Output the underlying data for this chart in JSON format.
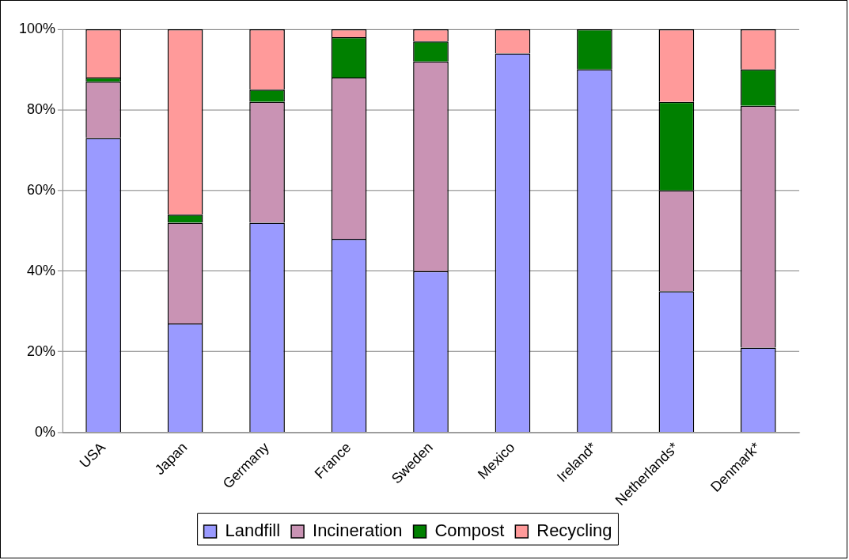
{
  "chart_data": {
    "type": "bar",
    "stacked": true,
    "categories": [
      "USA",
      "Japan",
      "Germany",
      "France",
      "Sweden",
      "Mexico",
      "Ireland*",
      "Netherlands*",
      "Denmark*"
    ],
    "series": [
      {
        "name": "Landfill",
        "color": "#9a9aff",
        "values": [
          73,
          27,
          52,
          48,
          40,
          94,
          90,
          35,
          21
        ]
      },
      {
        "name": "Incineration",
        "color": "#c993b4",
        "values": [
          14,
          25,
          30,
          40,
          52,
          0,
          0,
          25,
          60
        ]
      },
      {
        "name": "Compost",
        "color": "#008000",
        "values": [
          1,
          2,
          3,
          10,
          5,
          0,
          10,
          22,
          9
        ]
      },
      {
        "name": "Recycling",
        "color": "#ff9a9a",
        "values": [
          12,
          46,
          15,
          2,
          3,
          6,
          0,
          18,
          10
        ]
      }
    ],
    "ylim": [
      0,
      100
    ],
    "yticks": [
      {
        "value": 0,
        "label": "0%"
      },
      {
        "value": 20,
        "label": "20%"
      },
      {
        "value": 40,
        "label": "40%"
      },
      {
        "value": 60,
        "label": "60%"
      },
      {
        "value": 80,
        "label": "80%"
      },
      {
        "value": 100,
        "label": "100%"
      }
    ],
    "grid": "y",
    "legend": "bottom"
  }
}
